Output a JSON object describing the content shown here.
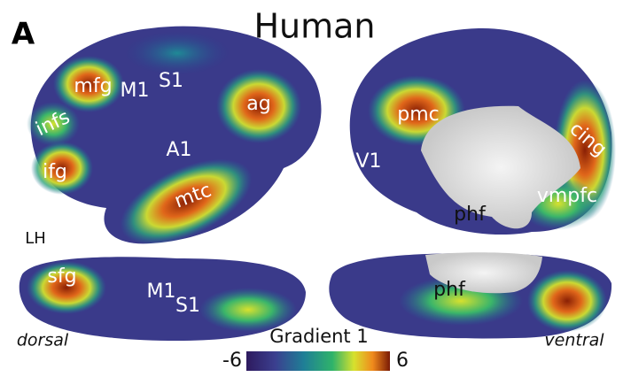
{
  "panel": "A",
  "title": "Human",
  "hemisphere": "LH",
  "views": [
    "dorsal",
    "ventral"
  ],
  "regions": [
    {
      "label": "mfg"
    },
    {
      "label": "M1"
    },
    {
      "label": "S1"
    },
    {
      "label": "infs"
    },
    {
      "label": "ag"
    },
    {
      "label": "A1"
    },
    {
      "label": "ifg"
    },
    {
      "label": "mtc"
    },
    {
      "label": "pmc"
    },
    {
      "label": "cing"
    },
    {
      "label": "V1"
    },
    {
      "label": "vmpfc"
    },
    {
      "label": "phf"
    },
    {
      "label": "sfg"
    },
    {
      "label": "M1"
    },
    {
      "label": "S1"
    },
    {
      "label": "phf"
    }
  ],
  "colorbar": {
    "title": "Gradient 1",
    "lim": [
      -6,
      6
    ],
    "ticks": [
      -6,
      6
    ]
  }
}
